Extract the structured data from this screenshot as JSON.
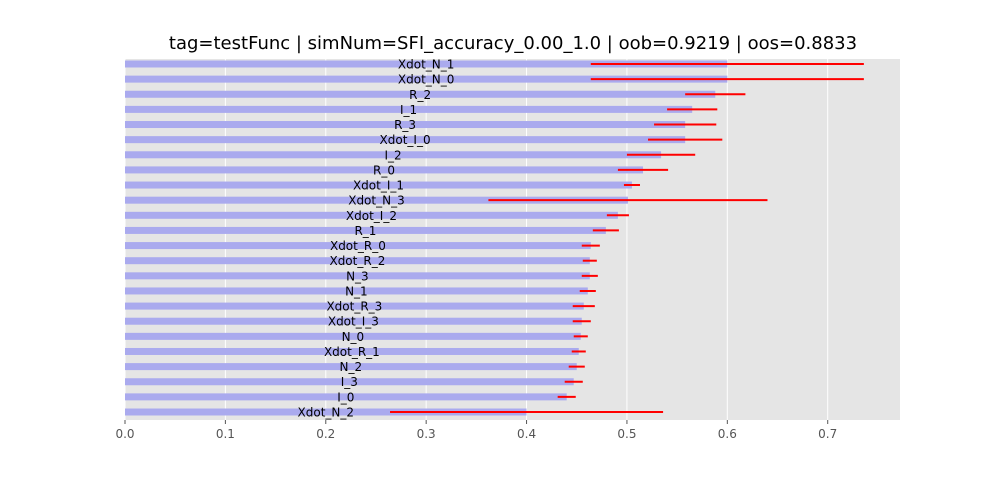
{
  "chart_data": {
    "type": "bar",
    "orientation": "horizontal",
    "title": "tag=testFunc | simNum=SFI_accuracy_0.00_1.0 | oob=0.9219 | oos=0.8833",
    "xlabel": "",
    "ylabel": "",
    "xlim": [
      0,
      0.772
    ],
    "xticks": [
      0.0,
      0.1,
      0.2,
      0.3,
      0.4,
      0.5,
      0.6,
      0.7
    ],
    "xtick_labels": [
      "0.0",
      "0.1",
      "0.2",
      "0.3",
      "0.4",
      "0.5",
      "0.6",
      "0.7"
    ],
    "grid": true,
    "bar_color": "#aaaaee",
    "error_color": "#ff0000",
    "background_color": "#e5e5e5",
    "categories": [
      "Xdot_N_1",
      "Xdot_N_0",
      "R_2",
      "I_1",
      "R_3",
      "Xdot_I_0",
      "I_2",
      "R_0",
      "Xdot_I_1",
      "Xdot_N_3",
      "Xdot_I_2",
      "R_1",
      "Xdot_R_0",
      "Xdot_R_2",
      "N_3",
      "N_1",
      "Xdot_R_3",
      "Xdot_I_3",
      "N_0",
      "Xdot_R_1",
      "N_2",
      "I_3",
      "I_0",
      "Xdot_N_2"
    ],
    "values": [
      0.6,
      0.6,
      0.588,
      0.565,
      0.558,
      0.558,
      0.534,
      0.516,
      0.505,
      0.501,
      0.491,
      0.479,
      0.464,
      0.463,
      0.463,
      0.461,
      0.457,
      0.455,
      0.454,
      0.452,
      0.45,
      0.447,
      0.44,
      0.4
    ],
    "errors": [
      0.136,
      0.136,
      0.03,
      0.025,
      0.031,
      0.037,
      0.034,
      0.025,
      0.008,
      0.139,
      0.011,
      0.013,
      0.009,
      0.007,
      0.008,
      0.008,
      0.011,
      0.009,
      0.007,
      0.007,
      0.008,
      0.009,
      0.009,
      0.136
    ]
  }
}
